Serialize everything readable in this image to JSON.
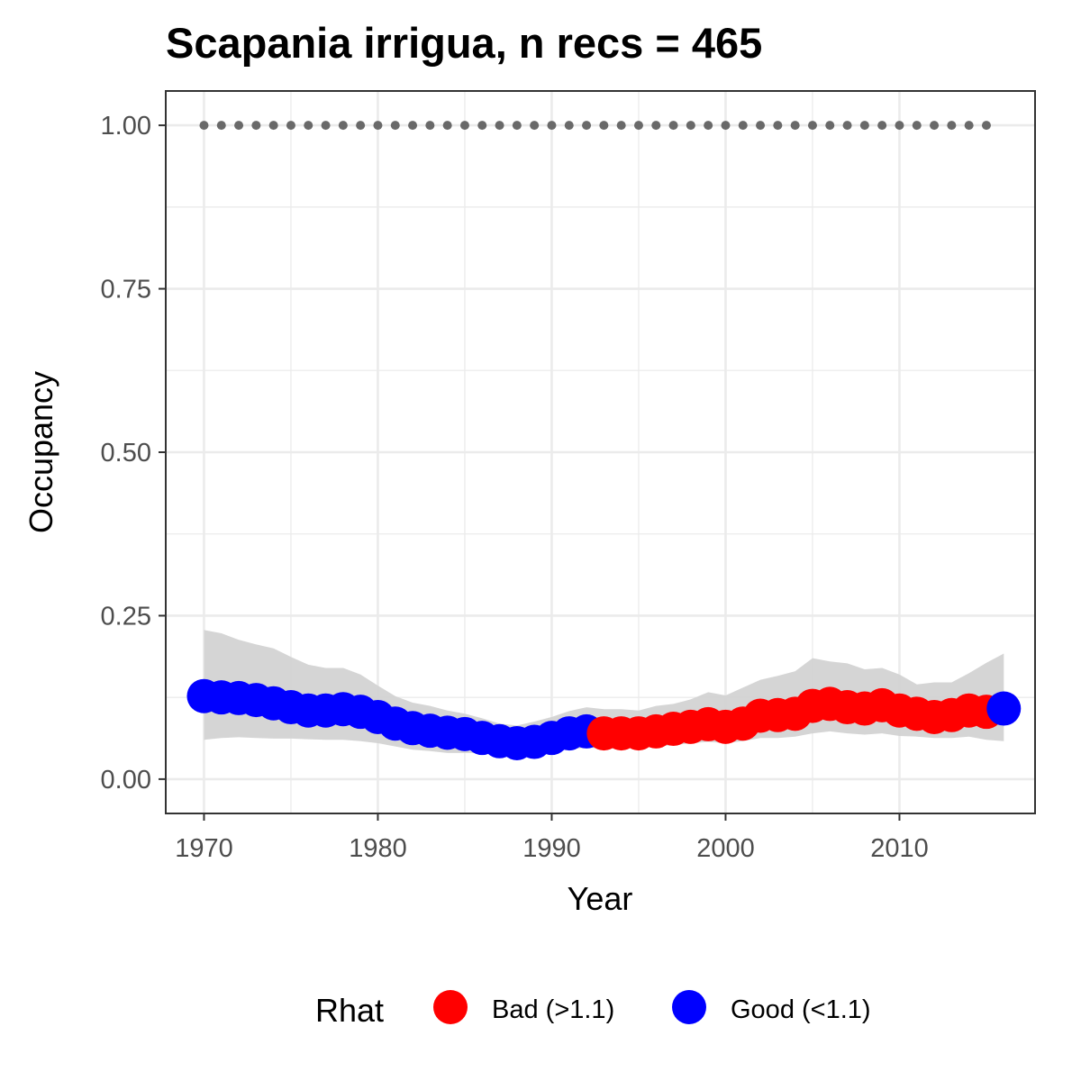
{
  "chart_data": {
    "type": "scatter",
    "title": "Scapania irrigua, n recs = 465",
    "xlabel": "Year",
    "ylabel": "Occupancy",
    "xlim": [
      1967.8,
      2017.8
    ],
    "ylim": [
      -0.0525,
      1.0525
    ],
    "x_ticks": [
      1970,
      1980,
      1990,
      2000,
      2010
    ],
    "x_tick_labels": [
      "1970",
      "1980",
      "1990",
      "2000",
      "2010"
    ],
    "y_ticks": [
      0,
      0.25,
      0.5,
      0.75,
      1
    ],
    "y_tick_labels": [
      "0.00",
      "0.25",
      "0.50",
      "0.75",
      "1.00"
    ],
    "grid": true,
    "legend": {
      "title": "Rhat",
      "position": "bottom",
      "items": [
        {
          "label": "Bad (>1.1)",
          "color": "#ff0000"
        },
        {
          "label": "Good (<1.1)",
          "color": "#0000ff"
        }
      ]
    },
    "colors": {
      "bad": "#ff0000",
      "good": "#0000ff",
      "band": "#d3d3d3",
      "reference": "#696969",
      "panel_border": "#333333",
      "grid": "#ebebeb"
    },
    "reference_points": {
      "y": 1.0,
      "x": [
        1970,
        1971,
        1972,
        1973,
        1974,
        1975,
        1976,
        1977,
        1978,
        1979,
        1980,
        1981,
        1982,
        1983,
        1984,
        1985,
        1986,
        1987,
        1988,
        1989,
        1990,
        1991,
        1992,
        1993,
        1994,
        1995,
        1996,
        1997,
        1998,
        1999,
        2000,
        2001,
        2002,
        2003,
        2004,
        2005,
        2006,
        2007,
        2008,
        2009,
        2010,
        2011,
        2012,
        2013,
        2014,
        2015
      ]
    },
    "series": {
      "year": [
        1970,
        1971,
        1972,
        1973,
        1974,
        1975,
        1976,
        1977,
        1978,
        1979,
        1980,
        1981,
        1982,
        1983,
        1984,
        1985,
        1986,
        1987,
        1988,
        1989,
        1990,
        1991,
        1992,
        1993,
        1994,
        1995,
        1996,
        1997,
        1998,
        1999,
        2000,
        2001,
        2002,
        2003,
        2004,
        2005,
        2006,
        2007,
        2008,
        2009,
        2010,
        2011,
        2012,
        2013,
        2014,
        2015,
        2016
      ],
      "occupancy": [
        0.127,
        0.125,
        0.124,
        0.121,
        0.116,
        0.11,
        0.105,
        0.105,
        0.107,
        0.103,
        0.095,
        0.085,
        0.078,
        0.074,
        0.071,
        0.069,
        0.063,
        0.058,
        0.055,
        0.057,
        0.063,
        0.07,
        0.073,
        0.07,
        0.07,
        0.07,
        0.073,
        0.077,
        0.08,
        0.084,
        0.08,
        0.085,
        0.097,
        0.098,
        0.1,
        0.112,
        0.115,
        0.11,
        0.108,
        0.113,
        0.105,
        0.1,
        0.095,
        0.098,
        0.105,
        0.103,
        0.108
      ],
      "lower": [
        0.06,
        0.063,
        0.064,
        0.063,
        0.062,
        0.062,
        0.061,
        0.06,
        0.06,
        0.058,
        0.055,
        0.05,
        0.045,
        0.043,
        0.04,
        0.04,
        0.04,
        0.038,
        0.036,
        0.038,
        0.042,
        0.046,
        0.048,
        0.047,
        0.046,
        0.048,
        0.05,
        0.052,
        0.055,
        0.057,
        0.055,
        0.058,
        0.063,
        0.063,
        0.065,
        0.07,
        0.073,
        0.07,
        0.068,
        0.07,
        0.066,
        0.065,
        0.063,
        0.063,
        0.065,
        0.06,
        0.058
      ],
      "upper": [
        0.228,
        0.223,
        0.213,
        0.206,
        0.2,
        0.187,
        0.175,
        0.17,
        0.17,
        0.16,
        0.143,
        0.127,
        0.117,
        0.112,
        0.105,
        0.1,
        0.093,
        0.085,
        0.082,
        0.088,
        0.095,
        0.104,
        0.11,
        0.107,
        0.107,
        0.105,
        0.112,
        0.115,
        0.122,
        0.133,
        0.128,
        0.14,
        0.152,
        0.158,
        0.165,
        0.185,
        0.18,
        0.177,
        0.168,
        0.17,
        0.16,
        0.145,
        0.148,
        0.148,
        0.162,
        0.178,
        0.192
      ],
      "rhat": [
        "good",
        "good",
        "good",
        "good",
        "good",
        "good",
        "good",
        "good",
        "good",
        "good",
        "good",
        "good",
        "good",
        "good",
        "good",
        "good",
        "good",
        "good",
        "good",
        "good",
        "good",
        "good",
        "good",
        "bad",
        "bad",
        "bad",
        "bad",
        "bad",
        "bad",
        "bad",
        "bad",
        "bad",
        "bad",
        "bad",
        "bad",
        "bad",
        "bad",
        "bad",
        "bad",
        "bad",
        "bad",
        "bad",
        "bad",
        "bad",
        "bad",
        "bad",
        "good"
      ]
    }
  }
}
